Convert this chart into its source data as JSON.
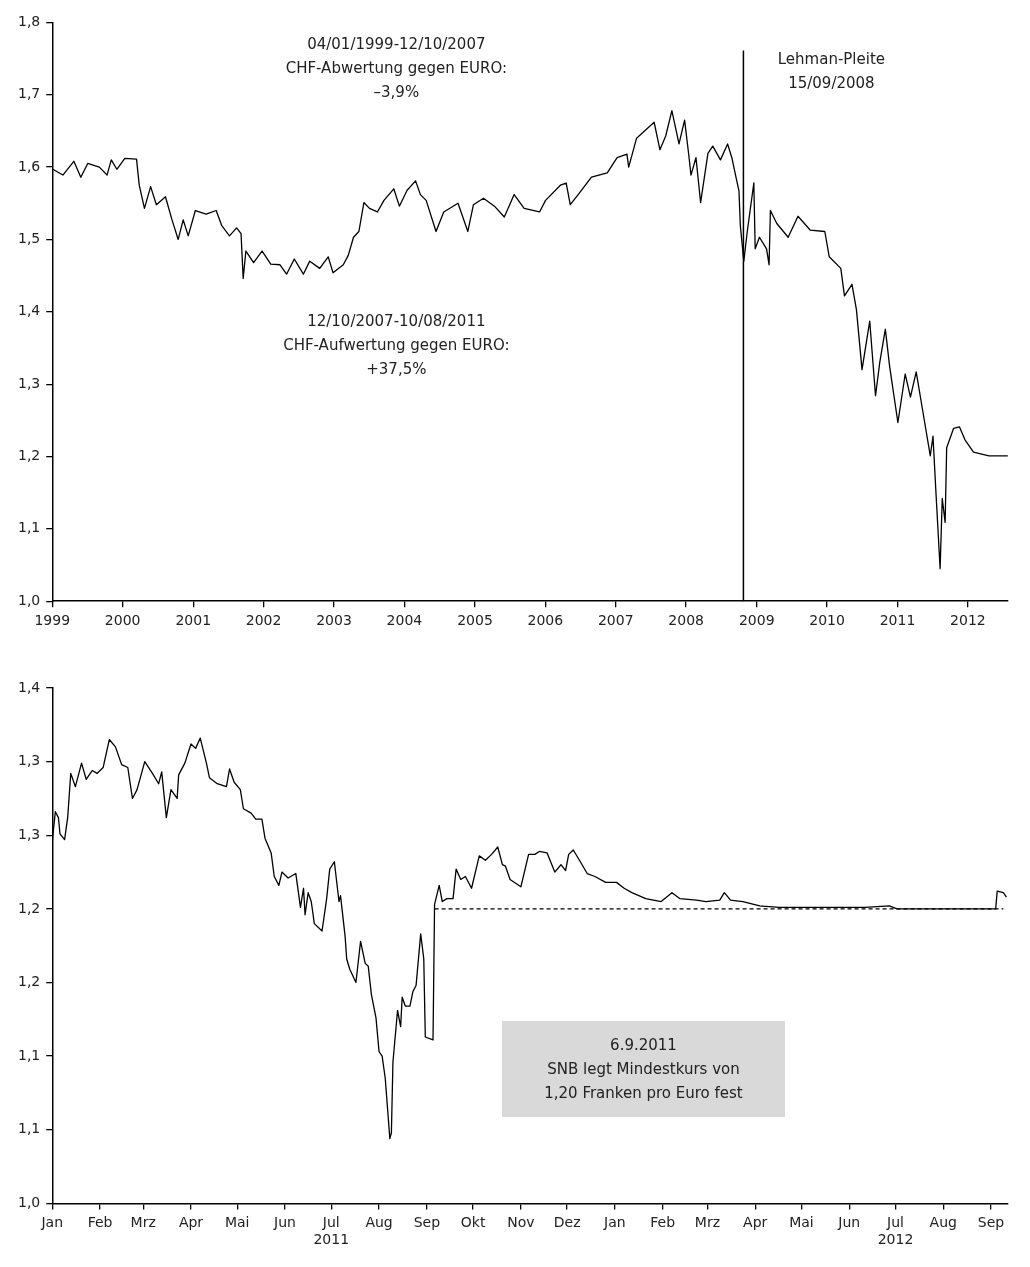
{
  "chart_data": [
    {
      "type": "line",
      "xlim": [
        "1999-01-01",
        "2012-07-27"
      ],
      "xticks": [
        "1999",
        "2000",
        "2001",
        "2002",
        "2003",
        "2004",
        "2005",
        "2006",
        "2007",
        "2008",
        "2009",
        "2010",
        "2011",
        "2012"
      ],
      "ylim": [
        1.0,
        1.8
      ],
      "yticks": [
        {
          "value": 1.0,
          "label": "1,0"
        },
        {
          "value": 1.1,
          "label": "1,1"
        },
        {
          "value": 1.2,
          "label": "1,2"
        },
        {
          "value": 1.3,
          "label": "1,3"
        },
        {
          "value": 1.4,
          "label": "1,4"
        },
        {
          "value": 1.5,
          "label": "1,5"
        },
        {
          "value": 1.6,
          "label": "1,6"
        },
        {
          "value": 1.7,
          "label": "1,7"
        },
        {
          "value": 1.8,
          "label": "1,8"
        }
      ],
      "marker": "none",
      "annotations": [
        "04/01/1999-12/10/2007\nCHF-Abwertung gegen EURO:\n–3,9%",
        "12/10/2007-10/08/2011\nCHF-Aufwertung gegen EURO:\n+37,5%"
      ],
      "ref_lines": [
        {
          "axis": "x",
          "value": "2008-10-24",
          "label": "Lehman-Pleite\n15/09/2008",
          "color": "#000000"
        }
      ],
      "series": [
        {
          "color": "#000000",
          "x": [
            "1999-01-04",
            "1999-02-25",
            "1999-04-23",
            "1999-05-29",
            "1999-07-04",
            "1999-09-02",
            "1999-10-12",
            "1999-11-03",
            "1999-12-02",
            "2000-01-12",
            "2000-03-13",
            "2000-03-27",
            "2000-04-23",
            "2000-05-25",
            "2000-06-24",
            "2000-08-10",
            "2000-09-13",
            "2000-10-15",
            "2000-11-10",
            "2000-12-06",
            "2001-01-12",
            "2001-03-09",
            "2001-04-30",
            "2001-05-29",
            "2001-07-08",
            "2001-08-14",
            "2001-09-06",
            "2001-09-17",
            "2001-10-01",
            "2001-11-10",
            "2001-12-24",
            "2002-02-07",
            "2002-03-27",
            "2002-04-30",
            "2002-06-09",
            "2002-07-26",
            "2002-08-28",
            "2002-10-19",
            "2002-12-02",
            "2002-12-27",
            "2003-02-18",
            "2003-03-16",
            "2003-04-12",
            "2003-05-10",
            "2003-06-05",
            "2003-07-04",
            "2003-08-14",
            "2003-09-17",
            "2003-11-07",
            "2003-12-06",
            "2004-01-15",
            "2004-02-28",
            "2004-03-24",
            "2004-04-23",
            "2004-06-13",
            "2004-07-23",
            "2004-10-05",
            "2004-11-25",
            "2004-12-24",
            "2005-02-14",
            "2005-04-12",
            "2005-06-02",
            "2005-07-23",
            "2005-09-13",
            "2005-12-02",
            "2006-01-02",
            "2006-03-20",
            "2006-04-19",
            "2006-05-10",
            "2006-06-20",
            "2006-08-28",
            "2006-11-18",
            "2007-01-08",
            "2007-02-28",
            "2007-03-09",
            "2007-04-19",
            "2007-07-19",
            "2007-08-18",
            "2007-09-17",
            "2007-10-19",
            "2007-11-25",
            "2007-12-24",
            "2008-01-15",
            "2008-01-26",
            "2008-02-21",
            "2008-03-16",
            "2008-04-23",
            "2008-05-18",
            "2008-06-27",
            "2008-08-03",
            "2008-08-25",
            "2008-09-17",
            "2008-10-01",
            "2008-10-08",
            "2008-10-26",
            "2008-11-14",
            "2008-12-17",
            "2008-12-24",
            "2009-01-15",
            "2009-02-21",
            "2009-03-06",
            "2009-03-13",
            "2009-04-15",
            "2009-06-13",
            "2009-08-03",
            "2009-10-05",
            "2009-12-20",
            "2010-01-12",
            "2010-03-13",
            "2010-04-01",
            "2010-05-10",
            "2010-06-02",
            "2010-07-01",
            "2010-08-10",
            "2010-09-09",
            "2010-10-01",
            "2010-10-30",
            "2010-11-21",
            "2011-01-03",
            "2011-02-10",
            "2011-03-09",
            "2011-04-08",
            "2011-05-10",
            "2011-06-20",
            "2011-07-04",
            "2011-07-19",
            "2011-08-10",
            "2011-08-21",
            "2011-09-05",
            "2011-09-13",
            "2011-10-19",
            "2011-11-18",
            "2011-12-17",
            "2012-01-30",
            "2012-04-19",
            "2012-07-26"
          ],
          "values": [
            1.597,
            1.589,
            1.608,
            1.586,
            1.605,
            1.6,
            1.589,
            1.61,
            1.597,
            1.612,
            1.611,
            1.575,
            1.543,
            1.573,
            1.548,
            1.559,
            1.527,
            1.5,
            1.527,
            1.505,
            1.54,
            1.535,
            1.54,
            1.519,
            1.505,
            1.516,
            1.508,
            1.446,
            1.484,
            1.468,
            1.484,
            1.466,
            1.465,
            1.452,
            1.473,
            1.452,
            1.47,
            1.46,
            1.476,
            1.454,
            1.465,
            1.478,
            1.503,
            1.511,
            1.551,
            1.543,
            1.538,
            1.554,
            1.57,
            1.546,
            1.568,
            1.581,
            1.562,
            1.554,
            1.511,
            1.538,
            1.55,
            1.511,
            1.548,
            1.557,
            1.546,
            1.531,
            1.562,
            1.543,
            1.538,
            1.554,
            1.575,
            1.578,
            1.548,
            1.562,
            1.586,
            1.592,
            1.613,
            1.618,
            1.6,
            1.64,
            1.662,
            1.624,
            1.643,
            1.678,
            1.632,
            1.665,
            1.616,
            1.589,
            1.613,
            1.551,
            1.619,
            1.629,
            1.61,
            1.632,
            1.613,
            1.584,
            1.567,
            1.519,
            1.47,
            1.513,
            1.578,
            1.487,
            1.503,
            1.487,
            1.465,
            1.54,
            1.522,
            1.503,
            1.532,
            1.513,
            1.511,
            1.476,
            1.46,
            1.422,
            1.438,
            1.403,
            1.32,
            1.387,
            1.284,
            1.33,
            1.376,
            1.325,
            1.247,
            1.314,
            1.282,
            1.317,
            1.266,
            1.201,
            1.228,
            1.152,
            1.045,
            1.142,
            1.109,
            1.212,
            1.239,
            1.241,
            1.223,
            1.206,
            1.201,
            1.201
          ]
        }
      ]
    },
    {
      "type": "line",
      "xlim": [
        "2011-01-01",
        "2012-09-12"
      ],
      "xticks": [
        {
          "value": "2011-01",
          "label": "Jan"
        },
        {
          "value": "2011-02",
          "label": "Feb"
        },
        {
          "value": "2011-03",
          "label": "Mrz"
        },
        {
          "value": "2011-04",
          "label": "Apr"
        },
        {
          "value": "2011-05",
          "label": "Mai"
        },
        {
          "value": "2011-06",
          "label": "Jun"
        },
        {
          "value": "2011-07",
          "label": "Jul\n2011"
        },
        {
          "value": "2011-08",
          "label": "Aug"
        },
        {
          "value": "2011-09",
          "label": "Sep"
        },
        {
          "value": "2011-10",
          "label": "Okt"
        },
        {
          "value": "2011-11",
          "label": "Nov"
        },
        {
          "value": "2011-12",
          "label": "Dez"
        },
        {
          "value": "2012-01",
          "label": "Jan"
        },
        {
          "value": "2012-02",
          "label": "Feb"
        },
        {
          "value": "2012-03",
          "label": "Mrz"
        },
        {
          "value": "2012-04",
          "label": "Apr"
        },
        {
          "value": "2012-05",
          "label": "Mai"
        },
        {
          "value": "2012-06",
          "label": "Jun"
        },
        {
          "value": "2012-07",
          "label": "Jul\n2012"
        },
        {
          "value": "2012-08",
          "label": "Aug"
        },
        {
          "value": "2012-09",
          "label": "Sep"
        }
      ],
      "ylim": [
        1.0,
        1.35
      ],
      "yticks": [
        {
          "value": 1.0,
          "label": "1,0"
        },
        {
          "value": 1.05,
          "label": "1,1"
        },
        {
          "value": 1.1,
          "label": "1,1"
        },
        {
          "value": 1.15,
          "label": "1,2"
        },
        {
          "value": 1.2,
          "label": "1,2"
        },
        {
          "value": 1.25,
          "label": "1,3"
        },
        {
          "value": 1.3,
          "label": "1,3"
        },
        {
          "value": 1.35,
          "label": "1,4"
        }
      ],
      "marker": "none",
      "annotations": [
        "6.9.2011\nSNB legt Mindestkurs von\n1,20 Franken pro Euro fest"
      ],
      "series": [
        {
          "color": "#000000",
          "x": [
            "2011-01-01",
            "2011-01-03",
            "2011-01-05",
            "2011-01-06",
            "2011-01-09",
            "2011-01-11",
            "2011-01-13",
            "2011-01-16",
            "2011-01-20",
            "2011-01-23",
            "2011-01-27",
            "2011-01-30",
            "2011-02-03",
            "2011-02-07",
            "2011-02-11",
            "2011-02-15",
            "2011-02-19",
            "2011-02-22",
            "2011-02-25",
            "2011-03-02",
            "2011-03-07",
            "2011-03-11",
            "2011-03-13",
            "2011-03-16",
            "2011-03-19",
            "2011-03-23",
            "2011-03-24",
            "2011-03-28",
            "2011-04-01",
            "2011-04-04",
            "2011-04-07",
            "2011-04-11",
            "2011-04-13",
            "2011-04-18",
            "2011-04-24",
            "2011-04-26",
            "2011-04-29",
            "2011-05-03",
            "2011-05-05",
            "2011-05-10",
            "2011-05-13",
            "2011-05-17",
            "2011-05-19",
            "2011-05-23",
            "2011-05-25",
            "2011-05-28",
            "2011-05-30",
            "2011-06-03",
            "2011-06-08",
            "2011-06-11",
            "2011-06-13",
            "2011-06-14",
            "2011-06-16",
            "2011-06-18",
            "2011-06-20",
            "2011-06-25",
            "2011-06-28",
            "2011-06-30",
            "2011-07-03",
            "2011-07-06",
            "2011-07-07",
            "2011-07-10",
            "2011-07-11",
            "2011-07-13",
            "2011-07-17",
            "2011-07-20",
            "2011-07-23",
            "2011-07-25",
            "2011-07-27",
            "2011-07-30",
            "2011-08-01",
            "2011-08-03",
            "2011-08-05",
            "2011-08-08",
            "2011-08-09",
            "2011-08-10",
            "2011-08-13",
            "2011-08-15",
            "2011-08-16",
            "2011-08-18",
            "2011-08-21",
            "2011-08-23",
            "2011-08-25",
            "2011-08-28",
            "2011-08-30",
            "2011-08-31",
            "2011-09-05",
            "2011-09-06",
            "2011-09-09",
            "2011-09-11",
            "2011-09-14",
            "2011-09-18",
            "2011-09-20",
            "2011-09-23",
            "2011-09-26",
            "2011-09-30",
            "2011-10-05",
            "2011-10-09",
            "2011-10-13",
            "2011-10-17",
            "2011-10-20",
            "2011-10-22",
            "2011-10-25",
            "2011-11-01",
            "2011-11-06",
            "2011-11-10",
            "2011-11-13",
            "2011-11-18",
            "2011-11-23",
            "2011-11-27",
            "2011-11-30",
            "2011-12-02",
            "2011-12-05",
            "2011-12-09",
            "2011-12-14",
            "2011-12-19",
            "2011-12-26",
            "2012-01-02",
            "2012-01-07",
            "2012-01-12",
            "2012-01-21",
            "2012-01-26",
            "2012-01-31",
            "2012-02-07",
            "2012-02-12",
            "2012-02-23",
            "2012-02-29",
            "2012-03-09",
            "2012-03-12",
            "2012-03-16",
            "2012-03-24",
            "2012-04-04",
            "2012-04-17",
            "2012-05-08",
            "2012-05-25",
            "2012-06-11",
            "2012-06-27",
            "2012-07-02",
            "2012-07-30",
            "2012-08-30",
            "2012-09-04",
            "2012-09-05",
            "2012-09-09",
            "2012-09-11"
          ],
          "values": [
            1.246,
            1.266,
            1.262,
            1.251,
            1.247,
            1.262,
            1.292,
            1.283,
            1.299,
            1.288,
            1.294,
            1.292,
            1.296,
            1.315,
            1.31,
            1.298,
            1.296,
            1.275,
            1.281,
            1.3,
            1.292,
            1.285,
            1.293,
            1.262,
            1.281,
            1.275,
            1.291,
            1.299,
            1.312,
            1.309,
            1.316,
            1.299,
            1.289,
            1.285,
            1.283,
            1.295,
            1.286,
            1.281,
            1.268,
            1.265,
            1.261,
            1.261,
            1.248,
            1.238,
            1.222,
            1.216,
            1.225,
            1.221,
            1.224,
            1.201,
            1.214,
            1.196,
            1.211,
            1.205,
            1.19,
            1.185,
            1.207,
            1.227,
            1.232,
            1.205,
            1.209,
            1.181,
            1.166,
            1.159,
            1.15,
            1.178,
            1.163,
            1.161,
            1.142,
            1.126,
            1.103,
            1.1,
            1.085,
            1.044,
            1.048,
            1.096,
            1.131,
            1.12,
            1.14,
            1.134,
            1.134,
            1.144,
            1.148,
            1.183,
            1.166,
            1.113,
            1.111,
            1.203,
            1.216,
            1.205,
            1.207,
            1.207,
            1.227,
            1.22,
            1.222,
            1.214,
            1.236,
            1.233,
            1.237,
            1.242,
            1.23,
            1.229,
            1.22,
            1.215,
            1.237,
            1.237,
            1.239,
            1.238,
            1.225,
            1.23,
            1.226,
            1.237,
            1.24,
            1.233,
            1.224,
            1.222,
            1.218,
            1.218,
            1.214,
            1.211,
            1.207,
            1.206,
            1.205,
            1.211,
            1.207,
            1.206,
            1.205,
            1.206,
            1.211,
            1.206,
            1.205,
            1.202,
            1.201,
            1.201,
            1.201,
            1.201,
            1.202,
            1.2,
            1.2,
            1.2,
            1.2,
            1.212,
            1.211,
            1.208
          ]
        },
        {
          "color": "#000000",
          "line_style": "dashed",
          "x": [
            "2011-09-06",
            "2012-09-09"
          ],
          "values": [
            1.2,
            1.2
          ]
        }
      ]
    }
  ]
}
